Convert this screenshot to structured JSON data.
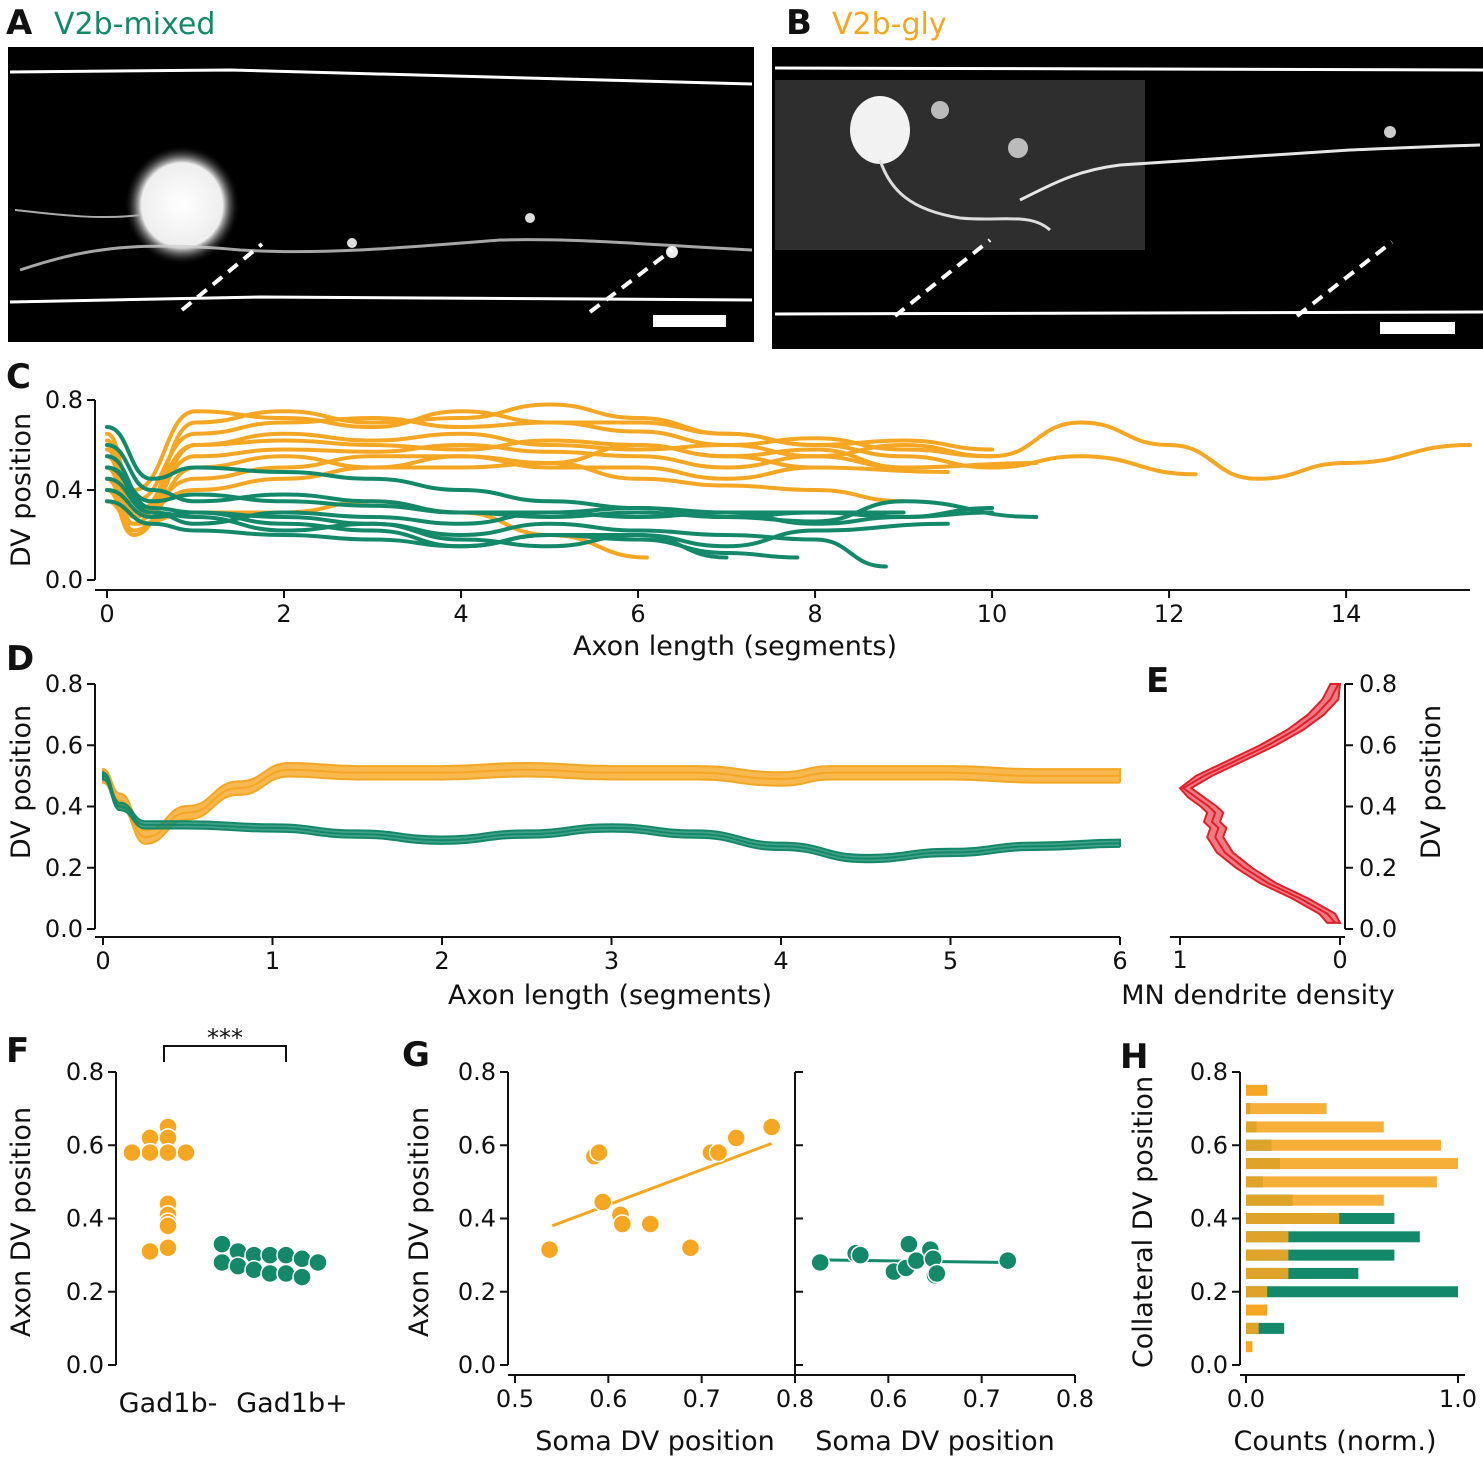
{
  "colors": {
    "green": "#14896a",
    "orange": "#f5a623",
    "red": "#e0202a",
    "red_fill": "#ee7b84"
  },
  "panels": {
    "A": {
      "label": "A",
      "title": "V2b-mixed"
    },
    "B": {
      "label": "B",
      "title": "V2b-gly"
    },
    "C": {
      "label": "C"
    },
    "D": {
      "label": "D"
    },
    "E": {
      "label": "E"
    },
    "F": {
      "label": "F"
    },
    "G": {
      "label": "G"
    },
    "H": {
      "label": "H"
    }
  },
  "chart_data": [
    {
      "id": "C",
      "type": "line",
      "xlabel": "Axon length (segments)",
      "ylabel": "DV position",
      "xlim": [
        0,
        15.4
      ],
      "ylim": [
        0,
        0.8
      ],
      "xticks": [
        "0",
        "2",
        "4",
        "6",
        "8",
        "10",
        "12",
        "14"
      ],
      "yticks": [
        "0.0",
        "0.4",
        "0.8"
      ],
      "series": [
        {
          "group": "V2b-gly",
          "x": [
            0,
            0.3,
            1,
            2,
            3,
            4,
            5,
            6,
            7,
            8,
            9,
            10
          ],
          "y": [
            0.6,
            0.35,
            0.65,
            0.7,
            0.72,
            0.68,
            0.7,
            0.66,
            0.6,
            0.63,
            0.58,
            0.55
          ]
        },
        {
          "group": "V2b-gly",
          "x": [
            0,
            0.3,
            1,
            2,
            3,
            4,
            5,
            6,
            7,
            8,
            9,
            10.5
          ],
          "y": [
            0.55,
            0.3,
            0.6,
            0.62,
            0.6,
            0.58,
            0.62,
            0.6,
            0.55,
            0.58,
            0.5,
            0.52
          ]
        },
        {
          "group": "V2b-gly",
          "x": [
            0,
            0.3,
            1,
            2,
            3,
            4,
            5,
            6,
            7,
            8,
            9,
            10,
            11,
            12,
            13,
            14,
            15.4
          ],
          "y": [
            0.62,
            0.28,
            0.55,
            0.58,
            0.57,
            0.6,
            0.57,
            0.55,
            0.5,
            0.55,
            0.6,
            0.55,
            0.7,
            0.6,
            0.45,
            0.52,
            0.6
          ]
        },
        {
          "group": "V2b-gly",
          "x": [
            0,
            0.3,
            1,
            2,
            3,
            4,
            5,
            6,
            7,
            8,
            9,
            10,
            11,
            12.3
          ],
          "y": [
            0.5,
            0.25,
            0.7,
            0.75,
            0.7,
            0.72,
            0.78,
            0.72,
            0.65,
            0.6,
            0.55,
            0.5,
            0.55,
            0.47
          ]
        },
        {
          "group": "V2b-gly",
          "x": [
            0,
            0.3,
            1,
            2,
            3,
            4,
            5,
            6,
            7,
            8,
            9
          ],
          "y": [
            0.45,
            0.22,
            0.5,
            0.55,
            0.5,
            0.5,
            0.52,
            0.45,
            0.42,
            0.4,
            0.35
          ]
        },
        {
          "group": "V2b-gly",
          "x": [
            0,
            0.3,
            1,
            2,
            3,
            4,
            5,
            6,
            7,
            8,
            9.5
          ],
          "y": [
            0.58,
            0.3,
            0.45,
            0.5,
            0.55,
            0.55,
            0.5,
            0.5,
            0.45,
            0.5,
            0.48
          ]
        },
        {
          "group": "V2b-gly",
          "x": [
            0,
            0.3,
            1,
            2,
            3,
            4,
            5,
            6,
            7,
            8,
            9
          ],
          "y": [
            0.4,
            0.2,
            0.6,
            0.65,
            0.62,
            0.65,
            0.6,
            0.58,
            0.6,
            0.55,
            0.5
          ]
        },
        {
          "group": "V2b-gly",
          "x": [
            0,
            0.3,
            1,
            2,
            3,
            4,
            5,
            6.1
          ],
          "y": [
            0.35,
            0.25,
            0.3,
            0.3,
            0.35,
            0.3,
            0.2,
            0.1
          ]
        },
        {
          "group": "V2b-gly",
          "x": [
            0,
            0.3,
            1,
            2,
            3,
            4,
            5,
            6,
            7,
            8,
            9,
            10
          ],
          "y": [
            0.65,
            0.4,
            0.75,
            0.72,
            0.68,
            0.75,
            0.7,
            0.7,
            0.65,
            0.6,
            0.62,
            0.58
          ]
        },
        {
          "group": "V2b-gly",
          "x": [
            0,
            0.3,
            1,
            2,
            3,
            4,
            5,
            6,
            7,
            8
          ],
          "y": [
            0.5,
            0.3,
            0.4,
            0.45,
            0.5,
            0.55,
            0.52,
            0.6,
            0.55,
            0.5
          ]
        },
        {
          "group": "V2b-mixed",
          "x": [
            0,
            0.5,
            1,
            2,
            3,
            4,
            5,
            6,
            7,
            8,
            9,
            10
          ],
          "y": [
            0.68,
            0.45,
            0.5,
            0.48,
            0.45,
            0.4,
            0.35,
            0.32,
            0.3,
            0.3,
            0.28,
            0.3
          ]
        },
        {
          "group": "V2b-mixed",
          "x": [
            0,
            0.5,
            1,
            2,
            3,
            4,
            5,
            6,
            7,
            8,
            9,
            10.5
          ],
          "y": [
            0.5,
            0.35,
            0.38,
            0.35,
            0.33,
            0.3,
            0.28,
            0.3,
            0.28,
            0.26,
            0.35,
            0.28
          ]
        },
        {
          "group": "V2b-mixed",
          "x": [
            0,
            0.5,
            1,
            2,
            3,
            4,
            5,
            6,
            7,
            8,
            8.8
          ],
          "y": [
            0.55,
            0.32,
            0.3,
            0.28,
            0.25,
            0.2,
            0.25,
            0.22,
            0.2,
            0.18,
            0.06
          ]
        },
        {
          "group": "V2b-mixed",
          "x": [
            0,
            0.5,
            1,
            2,
            3,
            4,
            5,
            6,
            7,
            7.8
          ],
          "y": [
            0.4,
            0.28,
            0.3,
            0.25,
            0.22,
            0.15,
            0.2,
            0.18,
            0.12,
            0.1
          ]
        },
        {
          "group": "V2b-mixed",
          "x": [
            0,
            0.5,
            1,
            2,
            3,
            4,
            5,
            6,
            7,
            8,
            9
          ],
          "y": [
            0.45,
            0.3,
            0.25,
            0.3,
            0.28,
            0.25,
            0.3,
            0.32,
            0.28,
            0.3,
            0.3
          ]
        },
        {
          "group": "V2b-mixed",
          "x": [
            0,
            0.5,
            1,
            2,
            3,
            4,
            5,
            6,
            7,
            8,
            9.5
          ],
          "y": [
            0.35,
            0.25,
            0.22,
            0.2,
            0.18,
            0.15,
            0.2,
            0.2,
            0.15,
            0.22,
            0.25
          ]
        },
        {
          "group": "V2b-mixed",
          "x": [
            0,
            0.5,
            1,
            2,
            3,
            4,
            5,
            6,
            7,
            8,
            9,
            10
          ],
          "y": [
            0.6,
            0.4,
            0.35,
            0.38,
            0.35,
            0.3,
            0.3,
            0.28,
            0.3,
            0.25,
            0.28,
            0.32
          ]
        },
        {
          "group": "V2b-mixed",
          "x": [
            0,
            0.5,
            1,
            2,
            3,
            4,
            5,
            6,
            7
          ],
          "y": [
            0.5,
            0.3,
            0.28,
            0.22,
            0.25,
            0.18,
            0.15,
            0.2,
            0.1
          ]
        }
      ]
    },
    {
      "id": "D",
      "type": "area",
      "xlabel": "Axon length (segments)",
      "ylabel": "DV position",
      "xlim": [
        0,
        6
      ],
      "ylim": [
        0,
        0.8
      ],
      "xticks": [
        "0",
        "1",
        "2",
        "3",
        "4",
        "5",
        "6"
      ],
      "yticks": [
        "0.0",
        "0.2",
        "0.4",
        "0.6",
        "0.8"
      ],
      "series": [
        {
          "group": "V2b-gly",
          "x": [
            0,
            0.1,
            0.25,
            0.5,
            0.8,
            1.1,
            1.5,
            2,
            2.5,
            3,
            3.5,
            4,
            4.3,
            4.5,
            5,
            5.5,
            6
          ],
          "y": [
            0.5,
            0.42,
            0.3,
            0.38,
            0.46,
            0.52,
            0.51,
            0.51,
            0.52,
            0.51,
            0.51,
            0.49,
            0.51,
            0.51,
            0.51,
            0.5,
            0.5
          ],
          "err": 0.022
        },
        {
          "group": "V2b-mixed",
          "x": [
            0,
            0.1,
            0.25,
            0.5,
            1,
            1.5,
            2,
            2.5,
            3,
            3.5,
            4,
            4.5,
            5,
            5.5,
            6
          ],
          "y": [
            0.5,
            0.4,
            0.34,
            0.34,
            0.33,
            0.31,
            0.29,
            0.31,
            0.33,
            0.31,
            0.27,
            0.23,
            0.25,
            0.27,
            0.28
          ],
          "err": 0.012
        }
      ]
    },
    {
      "id": "E",
      "type": "area",
      "xlabel": "MN dendrite density",
      "ylabel": "DV position",
      "xlim": [
        1,
        0
      ],
      "ylim": [
        0,
        0.8
      ],
      "xticks": [
        "1",
        "0"
      ],
      "yticks": [
        "0.0",
        "0.2",
        "0.4",
        "0.6",
        "0.8"
      ],
      "series": [
        {
          "name": "",
          "y": [
            0.02,
            0.05,
            0.1,
            0.15,
            0.2,
            0.25,
            0.3,
            0.33,
            0.35,
            0.38,
            0.4,
            0.43,
            0.46,
            0.5,
            0.55,
            0.6,
            0.65,
            0.7,
            0.75,
            0.8
          ],
          "density": [
            0.03,
            0.08,
            0.25,
            0.45,
            0.6,
            0.72,
            0.78,
            0.76,
            0.8,
            0.78,
            0.82,
            0.9,
            0.98,
            0.85,
            0.65,
            0.45,
            0.28,
            0.15,
            0.06,
            0.01
          ],
          "err": 0.05
        }
      ]
    },
    {
      "id": "F",
      "type": "scatter",
      "ylabel": "Axon DV position",
      "ylim": [
        0,
        0.8
      ],
      "yticks": [
        "0.0",
        "0.2",
        "0.4",
        "0.6",
        "0.8"
      ],
      "categories": [
        "Gad1b-",
        "Gad1b+"
      ],
      "significance": "***",
      "series": [
        {
          "group": "Gad1b-",
          "values": [
            0.65,
            0.62,
            0.62,
            0.58,
            0.58,
            0.58,
            0.58,
            0.44,
            0.41,
            0.39,
            0.38,
            0.32,
            0.31
          ]
        },
        {
          "group": "Gad1b+",
          "values": [
            0.33,
            0.31,
            0.3,
            0.3,
            0.3,
            0.29,
            0.28,
            0.28,
            0.27,
            0.26,
            0.25,
            0.25,
            0.24
          ]
        }
      ]
    },
    {
      "id": "G",
      "type": "scatter",
      "xlabel": "Soma DV position",
      "ylabel": "Axon DV position",
      "subplots": [
        {
          "group": "V2b-gly",
          "xlim": [
            0.5,
            0.8
          ],
          "ylim": [
            0,
            0.8
          ],
          "xticks": [
            "0.5",
            "0.6",
            "0.7",
            "0.8"
          ],
          "yticks": [
            "0.0",
            "0.2",
            "0.4",
            "0.6",
            "0.8"
          ],
          "x": [
            0.537,
            0.585,
            0.59,
            0.594,
            0.613,
            0.615,
            0.645,
            0.688,
            0.71,
            0.718,
            0.737,
            0.775
          ],
          "y": [
            0.315,
            0.57,
            0.58,
            0.445,
            0.41,
            0.385,
            0.385,
            0.32,
            0.58,
            0.58,
            0.62,
            0.65
          ],
          "fit": [
            [
              0.54,
              0.38
            ],
            [
              0.775,
              0.605
            ]
          ]
        },
        {
          "group": "V2b-mixed",
          "xlim": [
            0.5,
            0.8
          ],
          "ylim": [
            0,
            0.8
          ],
          "xticks": [
            "0.6",
            "0.7",
            "0.8"
          ],
          "x": [
            0.527,
            0.565,
            0.57,
            0.606,
            0.619,
            0.622,
            0.63,
            0.645,
            0.648,
            0.65,
            0.652,
            0.728
          ],
          "y": [
            0.28,
            0.305,
            0.3,
            0.255,
            0.265,
            0.33,
            0.285,
            0.315,
            0.29,
            0.245,
            0.25,
            0.285
          ],
          "fit": [
            [
              0.527,
              0.287
            ],
            [
              0.728,
              0.28
            ]
          ]
        }
      ]
    },
    {
      "id": "H",
      "type": "bar",
      "orientation": "horizontal",
      "xlabel": "Counts (norm.)",
      "ylabel": "Collateral DV position",
      "xlim": [
        0,
        1.0
      ],
      "ylim": [
        0,
        0.8
      ],
      "xticks": [
        "0.0",
        "1.0"
      ],
      "yticks": [
        "0.0",
        "0.2",
        "0.4",
        "0.6",
        "0.8"
      ],
      "categories": [
        0.05,
        0.1,
        0.15,
        0.2,
        0.25,
        0.3,
        0.35,
        0.4,
        0.45,
        0.5,
        0.55,
        0.6,
        0.65,
        0.7,
        0.75
      ],
      "series": [
        {
          "name": "V2b-gly",
          "values": [
            0.03,
            0.06,
            0.1,
            0.1,
            0.2,
            0.2,
            0.2,
            0.44,
            0.65,
            0.9,
            1.0,
            0.92,
            0.65,
            0.38,
            0.1
          ]
        },
        {
          "name": "V2b-mixed",
          "values": [
            0.0,
            0.18,
            0.0,
            1.0,
            0.53,
            0.7,
            0.82,
            0.7,
            0.22,
            0.08,
            0.16,
            0.12,
            0.05,
            0.02,
            0.0
          ]
        }
      ]
    }
  ]
}
